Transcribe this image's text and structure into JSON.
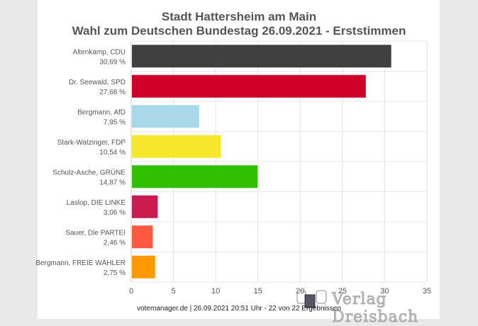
{
  "header": {
    "title_line1": "Stadt Hattersheim am Main",
    "title_line2": "Wahl zum Deutschen Bundestag 26.09.2021  - Erststimmen"
  },
  "footer": {
    "text": "votemanager.de | 26.09.2021 20:51 Uhr - 22 von 22 Ergebnissen"
  },
  "watermark": {
    "text": "Verlag Dreisbach"
  },
  "chart_data": {
    "type": "bar",
    "orientation": "horizontal",
    "title": "Stadt Hattersheim am Main / Wahl zum Deutschen Bundestag 26.09.2021  - Erststimmen",
    "categories": [
      "Altenkamp, CDU",
      "Dr. Seewald, SPD",
      "Bergmann, AfD",
      "Stark-Watzinger, FDP",
      "Schulz-Asche, GRÜNE",
      "Laslop, DIE LINKE",
      "Sauer, Die PARTEI",
      "Bergmann, FREIE WÄHLER"
    ],
    "value_labels": [
      "30,69 %",
      "27,68 %",
      "7,95 %",
      "10,54 %",
      "14,87 %",
      "3,06 %",
      "2,46 %",
      "2,75 %"
    ],
    "values": [
      30.69,
      27.68,
      7.95,
      10.54,
      14.87,
      3.06,
      2.46,
      2.75
    ],
    "colors": [
      "#404040",
      "#d0002a",
      "#a8d8ea",
      "#f7e72a",
      "#2fc000",
      "#c81b50",
      "#ff5740",
      "#ff9900"
    ],
    "xlim": [
      0,
      35
    ],
    "xticks": [
      "0",
      "5",
      "10",
      "15",
      "20",
      "25",
      "30",
      "35"
    ],
    "grid": true
  }
}
